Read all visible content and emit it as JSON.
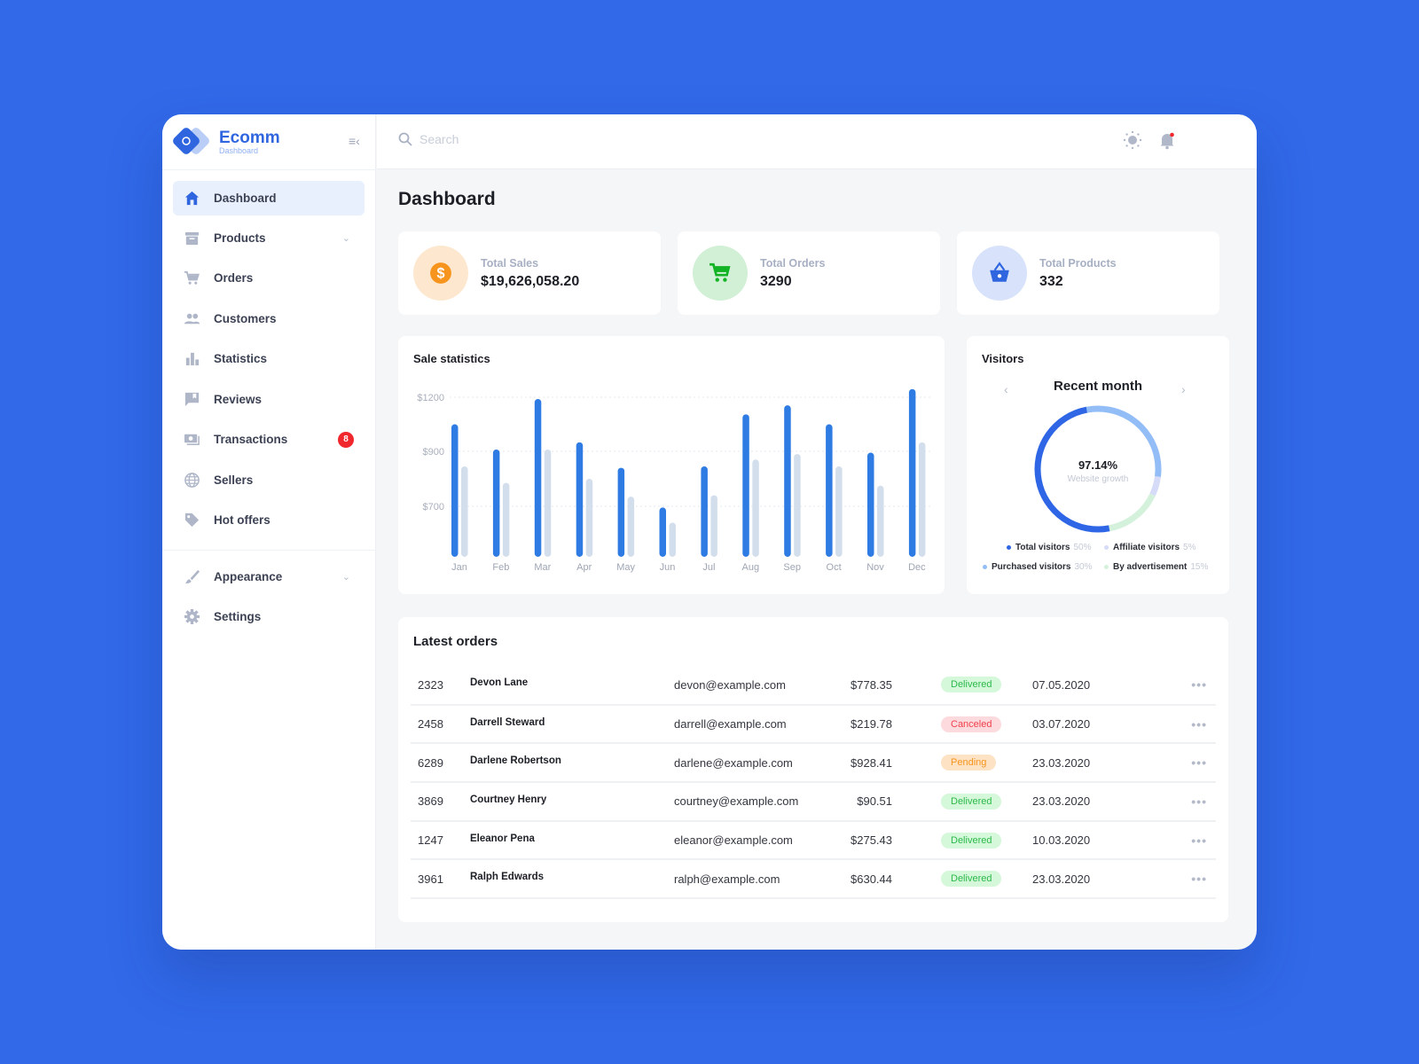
{
  "brand": {
    "name": "Ecomm",
    "sub": "Dashboard"
  },
  "sidebar": {
    "items": [
      {
        "label": "Dashboard",
        "icon": "home-icon",
        "active": true
      },
      {
        "label": "Products",
        "icon": "archive-icon",
        "chevron": true
      },
      {
        "label": "Orders",
        "icon": "cart-icon"
      },
      {
        "label": "Customers",
        "icon": "people-icon"
      },
      {
        "label": "Statistics",
        "icon": "bar-chart-icon"
      },
      {
        "label": "Reviews",
        "icon": "comment-icon"
      },
      {
        "label": "Transactions",
        "icon": "money-icon",
        "badge": "8"
      },
      {
        "label": "Sellers",
        "icon": "globe-icon"
      },
      {
        "label": "Hot offers",
        "icon": "tag-icon"
      },
      {
        "label": "Appearance",
        "icon": "brush-icon",
        "chevron": true
      },
      {
        "label": "Settings",
        "icon": "gear-icon"
      }
    ]
  },
  "topbar": {
    "search_placeholder": "Search",
    "notification_dot": true
  },
  "page": {
    "title": "Dashboard"
  },
  "kpis": [
    {
      "label": "Total Sales",
      "value": "$19,626,058.20",
      "icon": "dollar-icon",
      "color": "#f7941d",
      "bg": "#fde8cf"
    },
    {
      "label": "Total Orders",
      "value": "3290",
      "icon": "cart-icon",
      "color": "#12b324",
      "bg": "#d1f0d5"
    },
    {
      "label": "Total Products",
      "value": "332",
      "icon": "basket-icon",
      "color": "#2f66e0",
      "bg": "#d8e3fb"
    }
  ],
  "chart_data": {
    "type": "bar",
    "title": "Sale statistics",
    "categories": [
      "Jan",
      "Feb",
      "Mar",
      "Apr",
      "May",
      "Jun",
      "Jul",
      "Aug",
      "Sep",
      "Oct",
      "Nov",
      "Dec"
    ],
    "series": [
      {
        "values": [
          1050,
          910,
          1190,
          950,
          840,
          695,
          845,
          1105,
          1155,
          1050,
          895,
          1245
        ],
        "color": "#2e7be4"
      },
      {
        "values": [
          845,
          785,
          910,
          800,
          735,
          635,
          740,
          870,
          890,
          845,
          775,
          950
        ],
        "color": "#d3deec"
      }
    ],
    "yticks": [
      "$1200",
      "$900",
      "$700"
    ],
    "ytick_values": [
      1200,
      900,
      700
    ],
    "grid": true
  },
  "visitors": {
    "title": "Visitors",
    "period": "Recent month",
    "center_value": "97.14%",
    "center_label": "Website growth",
    "segments": [
      {
        "name": "Total visitors",
        "pct": "50%",
        "value": 50,
        "color": "#2e66e6"
      },
      {
        "name": "Affiliate visitors",
        "pct": "5%",
        "value": 5,
        "color": "#d6dbf8"
      },
      {
        "name": "Purchased visitors",
        "pct": "30%",
        "value": 30,
        "color": "#93bdf6"
      },
      {
        "name": "By advertisement",
        "pct": "15%",
        "value": 15,
        "color": "#d4f1dc"
      }
    ]
  },
  "orders": {
    "title": "Latest orders",
    "rows": [
      {
        "id": "2323",
        "name": "Devon Lane",
        "email": "devon@example.com",
        "amount": "$778.35",
        "status": "Delivered",
        "date": "07.05.2020"
      },
      {
        "id": "2458",
        "name": "Darrell Steward",
        "email": "darrell@example.com",
        "amount": "$219.78",
        "status": "Canceled",
        "date": "03.07.2020"
      },
      {
        "id": "6289",
        "name": "Darlene Robertson",
        "email": "darlene@example.com",
        "amount": "$928.41",
        "status": "Pending",
        "date": "23.03.2020"
      },
      {
        "id": "3869",
        "name": "Courtney Henry",
        "email": "courtney@example.com",
        "amount": "$90.51",
        "status": "Delivered",
        "date": "23.03.2020"
      },
      {
        "id": "1247",
        "name": "Eleanor Pena",
        "email": "eleanor@example.com",
        "amount": "$275.43",
        "status": "Delivered",
        "date": "10.03.2020"
      },
      {
        "id": "3961",
        "name": "Ralph Edwards",
        "email": "ralph@example.com",
        "amount": "$630.44",
        "status": "Delivered",
        "date": "23.03.2020"
      }
    ],
    "status_colors": {
      "Delivered": [
        "#d5f8da",
        "#2bb94a"
      ],
      "Canceled": [
        "#fddadd",
        "#f0404c"
      ],
      "Pending": [
        "#fde2c4",
        "#f7941d"
      ]
    }
  }
}
